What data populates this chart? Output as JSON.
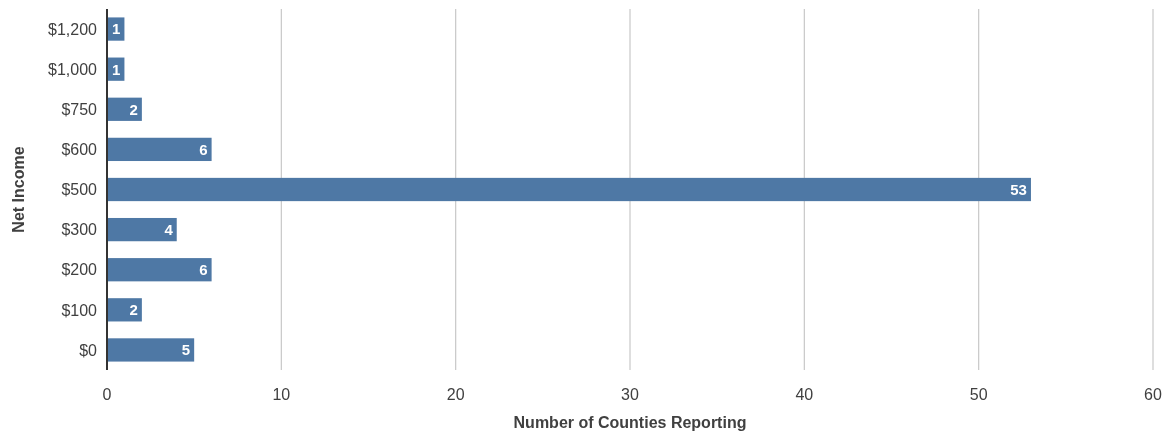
{
  "chart_data": {
    "type": "bar",
    "orientation": "horizontal",
    "xlabel": "Number of Counties Reporting",
    "ylabel": "Net Income",
    "categories": [
      "$1,200",
      "$1,000",
      "$750",
      "$600",
      "$500",
      "$300",
      "$200",
      "$100",
      "$0"
    ],
    "values": [
      1,
      1,
      2,
      6,
      53,
      4,
      6,
      2,
      5
    ],
    "color": "#4e78a5",
    "xlim": [
      0,
      60
    ],
    "xticks": [
      0,
      10,
      20,
      30,
      40,
      50,
      60
    ],
    "grid": "x",
    "data_labels": true
  }
}
